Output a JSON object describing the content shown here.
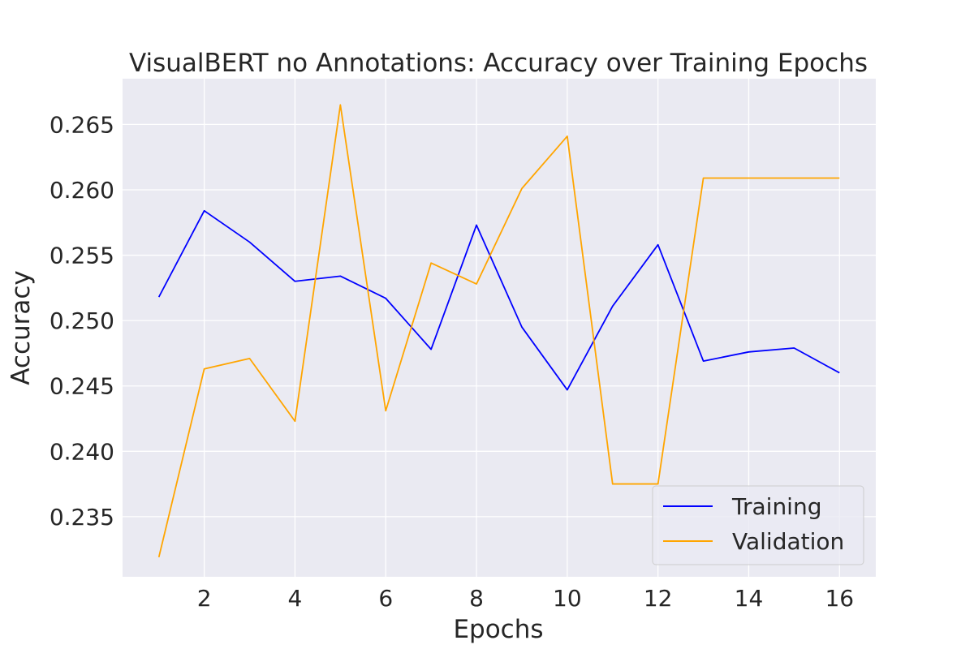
{
  "chart_data": {
    "type": "line",
    "title": "VisualBERT no Annotations: Accuracy over Training Epochs",
    "xlabel": "Epochs",
    "ylabel": "Accuracy",
    "x": [
      1,
      2,
      3,
      4,
      5,
      6,
      7,
      8,
      9,
      10,
      11,
      12,
      13,
      14,
      15,
      16
    ],
    "xlim": [
      0.2,
      16.8
    ],
    "ylim": [
      0.2304,
      0.2685
    ],
    "xticks": [
      2,
      4,
      6,
      8,
      10,
      12,
      14,
      16
    ],
    "xtick_labels": [
      "2",
      "4",
      "6",
      "8",
      "10",
      "12",
      "14",
      "16"
    ],
    "yticks": [
      0.235,
      0.24,
      0.245,
      0.25,
      0.255,
      0.26,
      0.265
    ],
    "ytick_labels": [
      "0.235",
      "0.240",
      "0.245",
      "0.250",
      "0.255",
      "0.260",
      "0.265"
    ],
    "grid": true,
    "legend_position": "lower-right",
    "series": [
      {
        "name": "Training",
        "color": "#0000ff",
        "values": [
          0.2518,
          0.2584,
          0.256,
          0.253,
          0.2534,
          0.2517,
          0.2478,
          0.2573,
          0.2495,
          0.2447,
          0.2511,
          0.2558,
          0.2469,
          0.2476,
          0.2479,
          0.246
        ]
      },
      {
        "name": "Validation",
        "color": "#ffa500",
        "values": [
          0.2319,
          0.2463,
          0.2471,
          0.2423,
          0.2665,
          0.2431,
          0.2544,
          0.2528,
          0.2601,
          0.2641,
          0.2375,
          0.2375,
          0.2609,
          0.2609,
          0.2609,
          0.2609
        ]
      }
    ]
  }
}
